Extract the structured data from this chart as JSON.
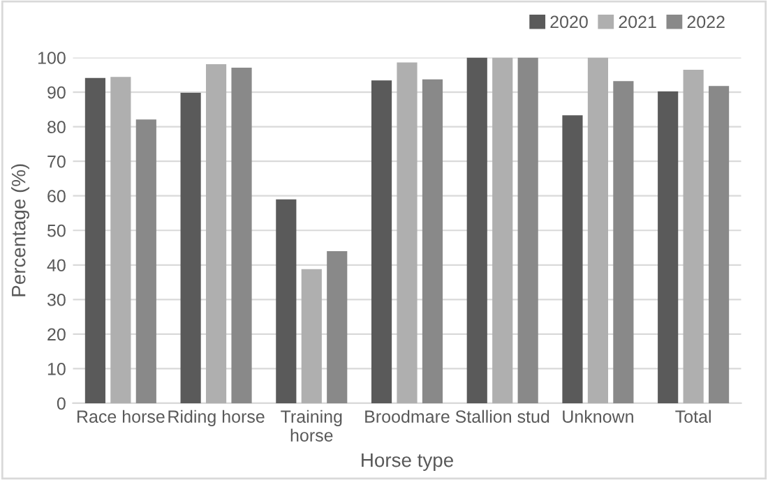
{
  "chart_data": {
    "type": "bar",
    "xlabel": "Horse type",
    "ylabel": "Percentage (%)",
    "categories": [
      "Race horse",
      "Riding horse",
      "Training\nhorse",
      "Broodmare",
      "Stallion stud",
      "Unknown",
      "Total"
    ],
    "series": [
      {
        "name": "2020",
        "color": "#5a5a5a",
        "values": [
          94.1,
          89.8,
          59.0,
          93.4,
          100,
          83.3,
          90.2
        ]
      },
      {
        "name": "2021",
        "color": "#afafaf",
        "values": [
          94.4,
          98.1,
          38.8,
          98.6,
          100,
          100,
          96.5
        ]
      },
      {
        "name": "2022",
        "color": "#898989",
        "values": [
          82.1,
          97.1,
          44.0,
          93.7,
          100,
          93.2,
          91.8
        ]
      }
    ],
    "ylim": [
      0,
      100
    ],
    "yticks": [
      0,
      10,
      20,
      30,
      40,
      50,
      60,
      70,
      80,
      90,
      100
    ],
    "grid": "y",
    "legend": "top right"
  }
}
